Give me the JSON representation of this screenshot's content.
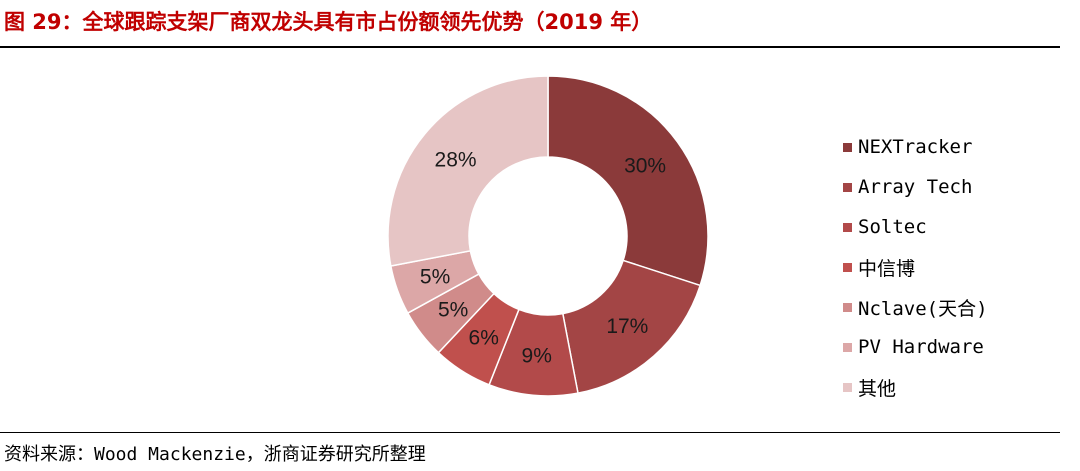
{
  "title": "图 29：全球跟踪支架厂商双龙头具有市占份额领先优势（2019 年）",
  "source": "资料来源：Wood Mackenzie，浙商证券研究所整理",
  "chart_data": {
    "type": "pie",
    "subtype": "donut",
    "title": "图 29：全球跟踪支架厂商双龙头具有市占份额领先优势（2019 年）",
    "legend_position": "right",
    "categories": [
      "NEXTracker",
      "Array Tech",
      "Soltec",
      "中信博",
      "Nclave(天合)",
      "PV Hardware",
      "其他"
    ],
    "values": [
      30,
      17,
      9,
      6,
      5,
      5,
      28
    ],
    "labels": [
      "30%",
      "17%",
      "9%",
      "6%",
      "5%",
      "5%",
      "28%"
    ],
    "colors": [
      "#8b3a3a",
      "#a34545",
      "#b24a4a",
      "#c0504d",
      "#d08b8a",
      "#dca7a7",
      "#e6c5c5"
    ]
  }
}
